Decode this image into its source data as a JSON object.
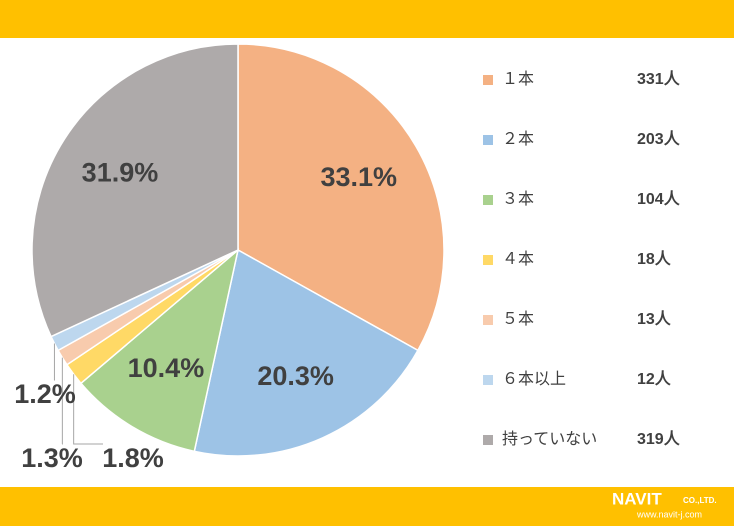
{
  "chart_data": {
    "type": "pie",
    "categories": [
      "１本",
      "２本",
      "３本",
      "４本",
      "５本",
      "６本以上",
      "持っていない"
    ],
    "values": [
      33.1,
      20.3,
      10.4,
      1.8,
      1.3,
      1.2,
      31.9
    ],
    "value_labels": [
      "33.1%",
      "20.3%",
      "10.4%",
      "1.8%",
      "1.3%",
      "1.2%",
      "31.9%"
    ],
    "counts": [
      "331人",
      "203人",
      "104人",
      "18人",
      "13人",
      "12人",
      "319人"
    ],
    "colors": [
      "#f4b183",
      "#9dc3e6",
      "#a9d18e",
      "#ffd966",
      "#f8cbad",
      "#bdd7ee",
      "#aeaaaa"
    ],
    "legend": "right"
  },
  "logo": {
    "name": "NAVIT",
    "suffix": "CO.,LTD.",
    "url": "www.navit-j.com"
  }
}
